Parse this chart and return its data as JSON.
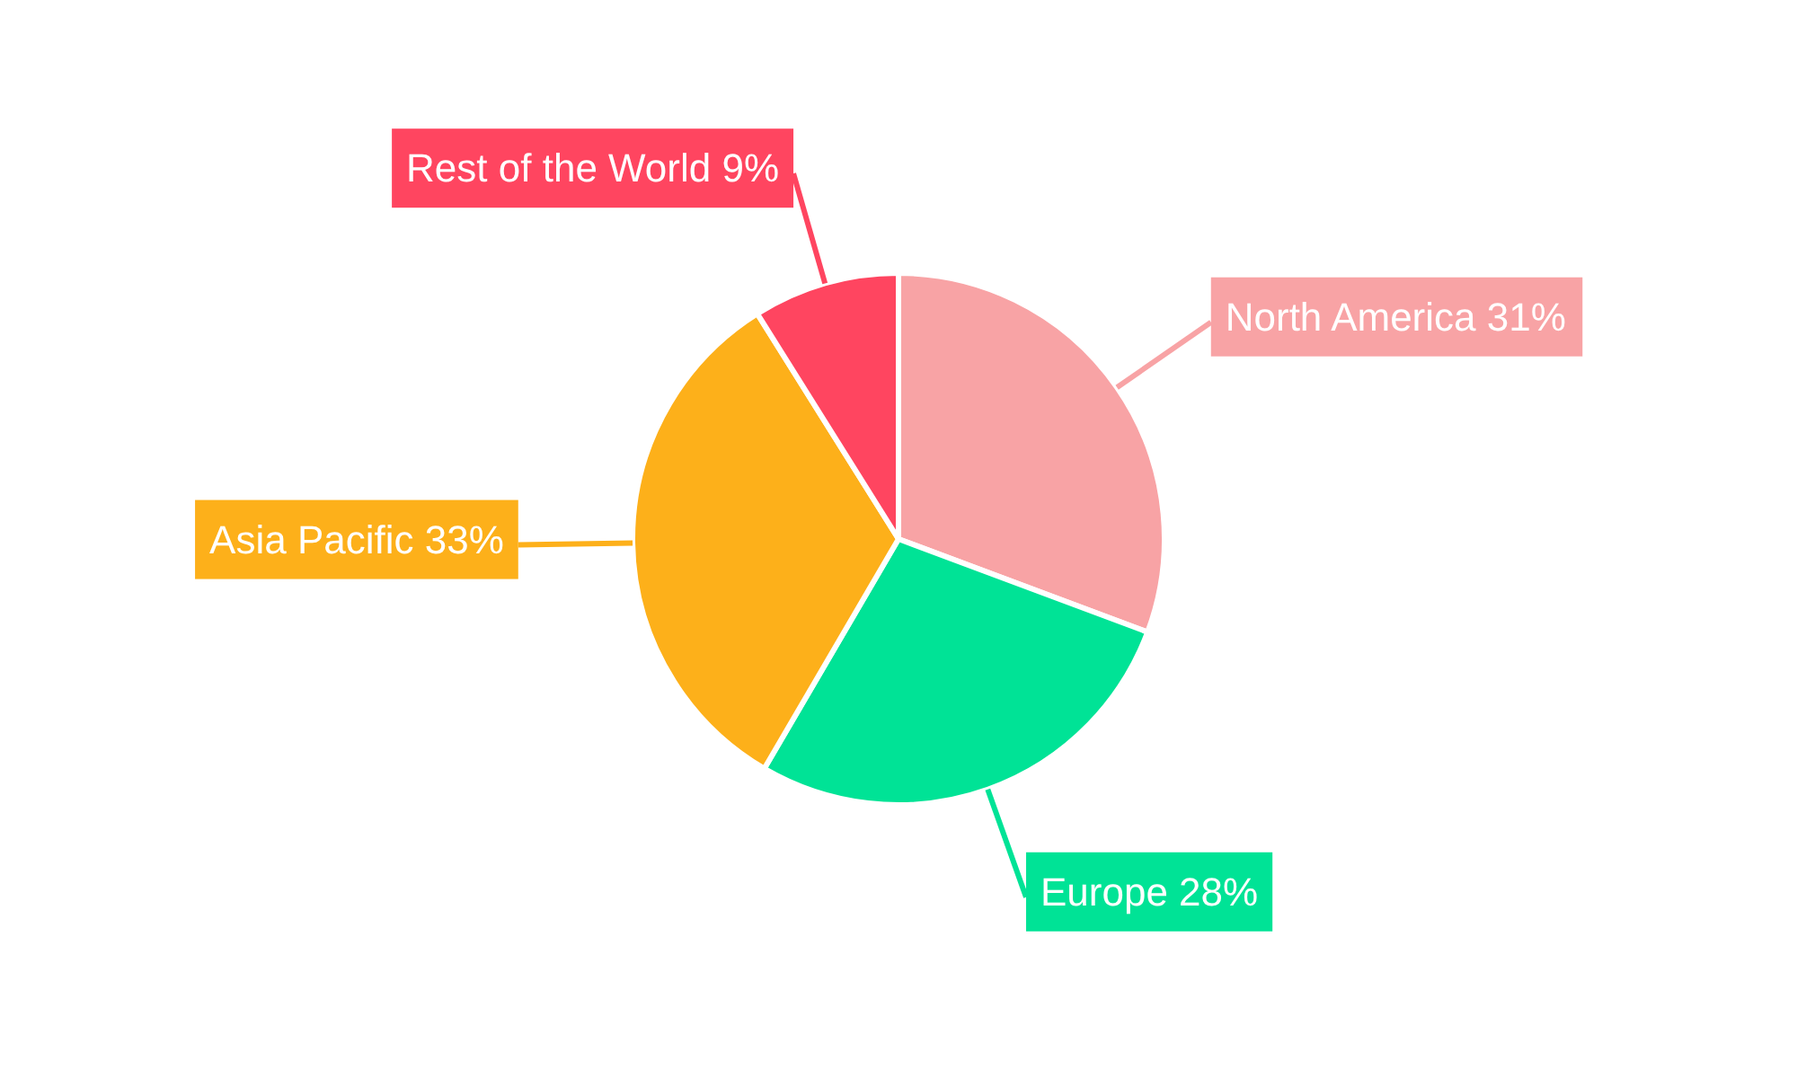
{
  "chart_data": {
    "type": "pie",
    "categories": [
      "North America",
      "Europe",
      "Asia Pacific",
      "Rest of the World"
    ],
    "values": [
      31,
      28,
      33,
      9
    ],
    "value_labels": [
      "31%",
      "28%",
      "33%",
      "9%"
    ],
    "colors": [
      "#f8a3a5",
      "#00e396",
      "#fdb01a",
      "#ff4560"
    ]
  }
}
